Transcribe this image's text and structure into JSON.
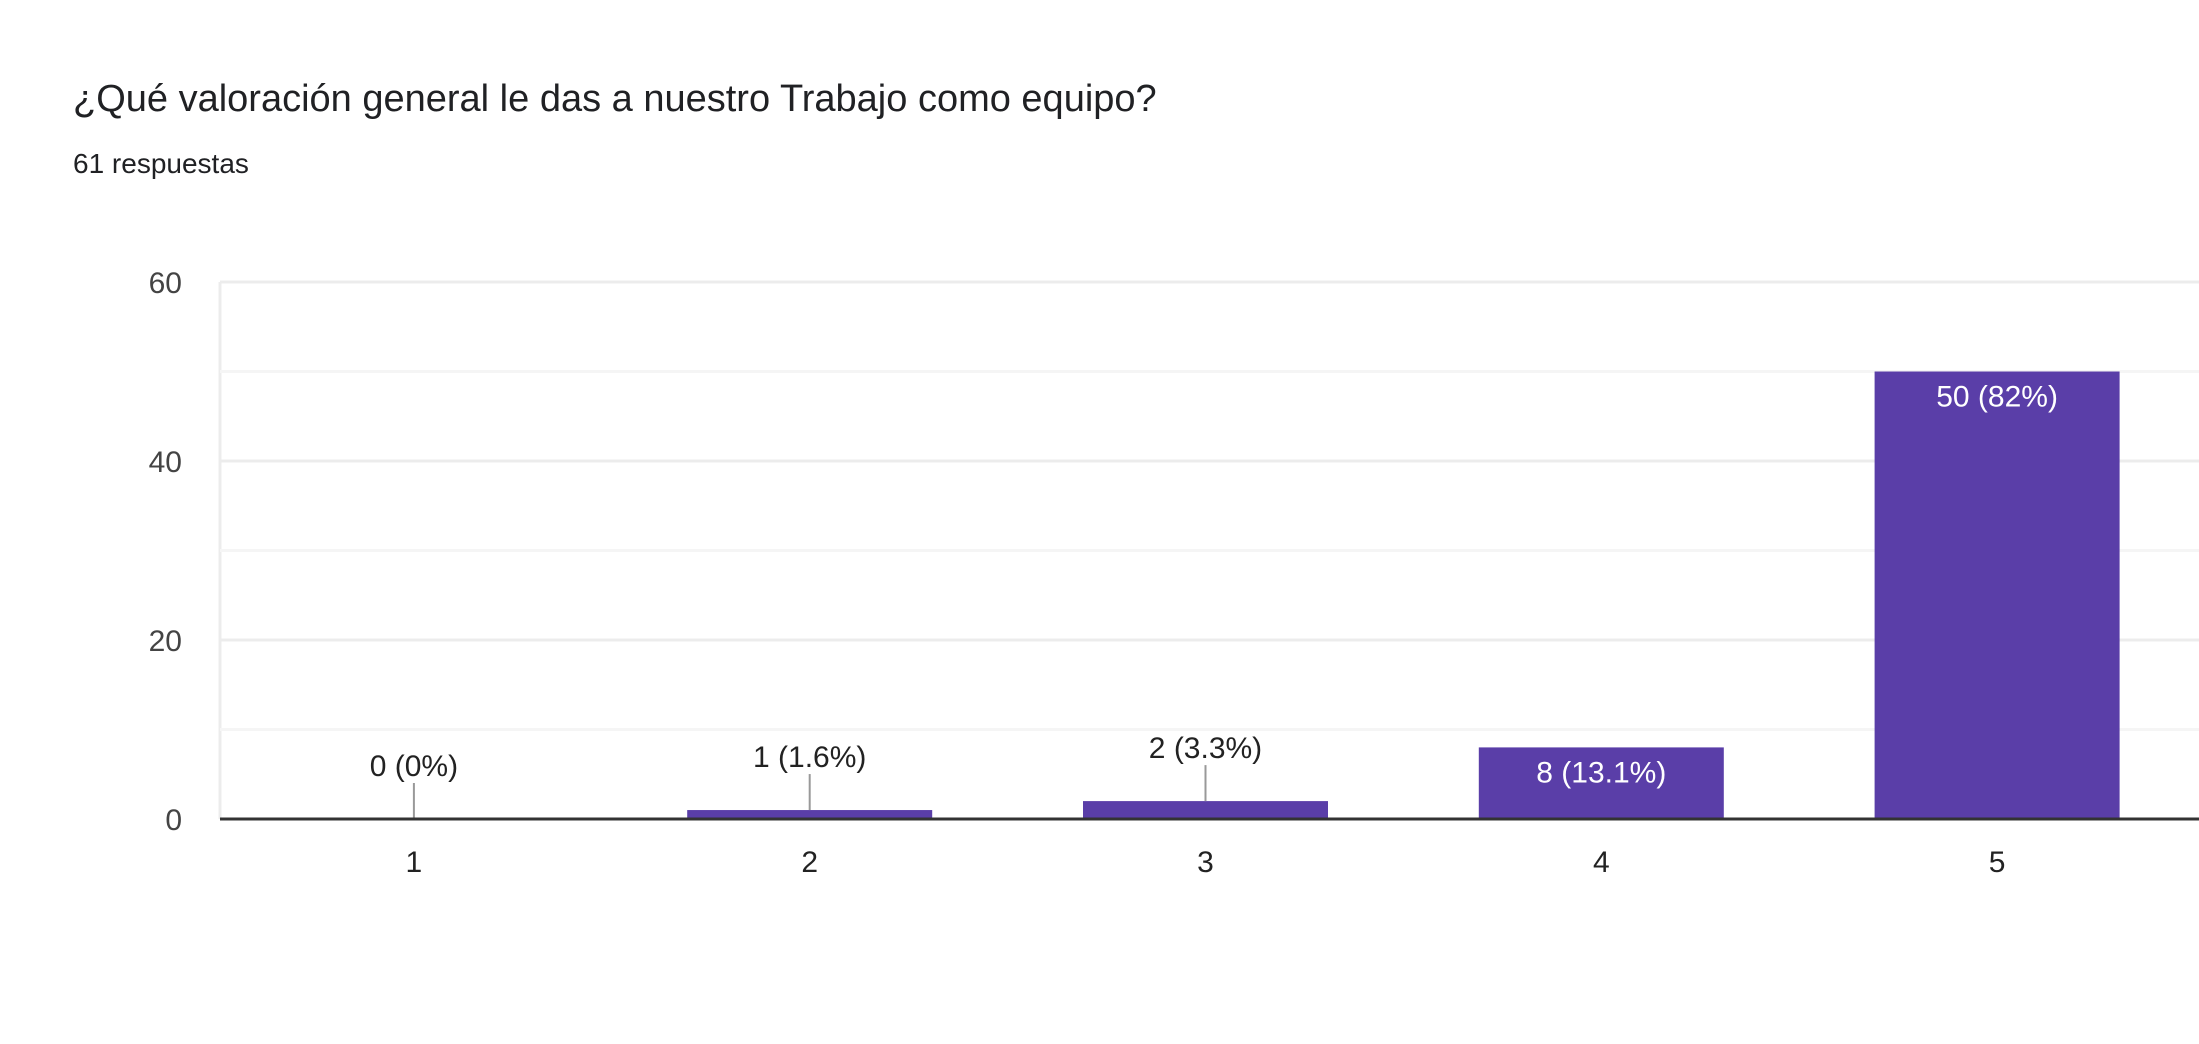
{
  "header": {
    "title": "¿Qué valoración general le das a nuestro Trabajo como equipo?",
    "subtitle": "61 respuestas"
  },
  "chart_data": {
    "type": "bar",
    "categories": [
      "1",
      "2",
      "3",
      "4",
      "5"
    ],
    "values": [
      0,
      1,
      2,
      8,
      50
    ],
    "data_labels": [
      "0 (0%)",
      "1 (1.6%)",
      "2 (3.3%)",
      "8 (13.1%)",
      "50 (82%)"
    ],
    "ylim": [
      0,
      60
    ],
    "yticks": [
      0,
      20,
      40,
      60
    ],
    "minor_gridlines": [
      10,
      30,
      50
    ],
    "grid": true,
    "bar_color": "#5a3ea8",
    "xlabel": "",
    "ylabel": ""
  }
}
